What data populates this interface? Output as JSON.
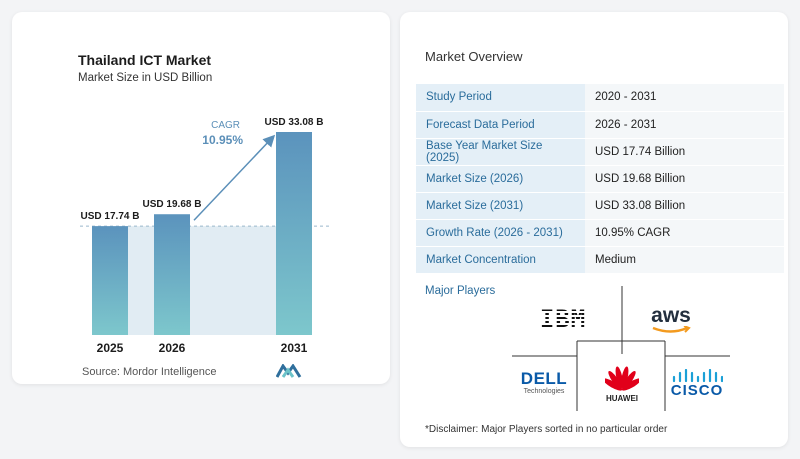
{
  "chart_data": {
    "type": "bar",
    "title": "Thailand ICT Market",
    "subtitle": "Market Size in USD Billion",
    "categories": [
      "2025",
      "2026",
      "2031"
    ],
    "values": [
      17.74,
      19.68,
      33.08
    ],
    "data_labels": [
      "USD 17.74 B",
      "USD 19.68 B",
      "USD 33.08 B"
    ],
    "cagr_label": "CAGR",
    "cagr_value": "10.95%",
    "colors": {
      "bar_top": "#5b93bd",
      "bar_bottom": "#7dc7cc",
      "band": "#e1ecf3",
      "arrow": "#5b8fb8",
      "cagr": "#5b8fb8"
    }
  },
  "source": "Source:  Mordor Intelligence",
  "overview": {
    "title": "Market Overview",
    "rows": [
      {
        "key": "Study Period",
        "value": "2020 - 2031"
      },
      {
        "key": "Forecast Data Period",
        "value": "2026 - 2031"
      },
      {
        "key": "Base Year Market Size (2025)",
        "value": "USD 17.74 Billion"
      },
      {
        "key": "Market Size (2026)",
        "value": "USD 19.68 Billion"
      },
      {
        "key": "Market Size (2031)",
        "value": "USD 33.08 Billion"
      },
      {
        "key": "Growth Rate (2026 - 2031)",
        "value": "10.95% CAGR"
      },
      {
        "key": "Market Concentration",
        "value": "Medium"
      }
    ]
  },
  "players": {
    "title": "Major Players",
    "logos": [
      "IBM",
      "aws",
      "DELL Technologies",
      "HUAWEI",
      "CISCO"
    ],
    "dell_sub": "Technologies"
  },
  "disclaimer": "*Disclaimer: Major Players sorted in no particular order"
}
